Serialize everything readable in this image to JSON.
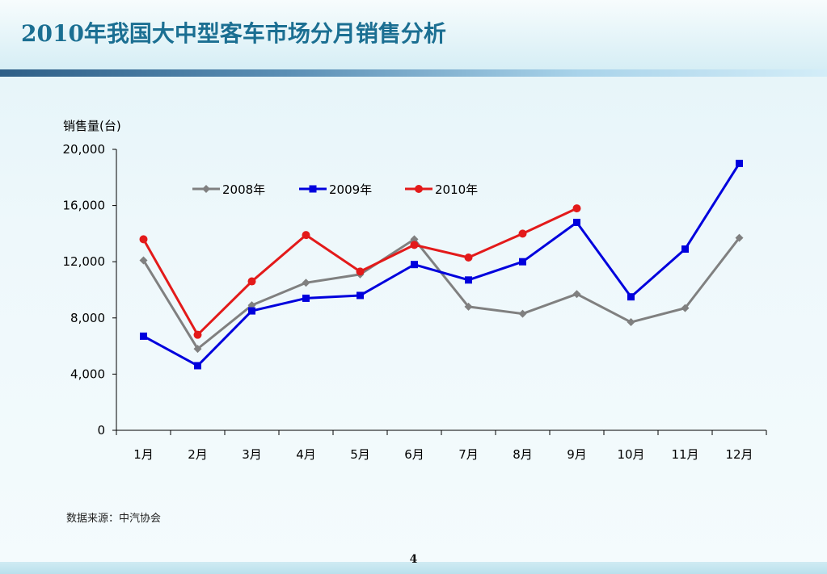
{
  "slide": {
    "title": "2010年我国大中型客车市场分月销售分析",
    "source": "数据来源：中汽协会",
    "page_number": "4"
  },
  "chart_data": {
    "type": "line",
    "ylabel": "销售量(台)",
    "xlabel": "",
    "ylim": [
      0,
      20000
    ],
    "yticks": [
      0,
      4000,
      8000,
      12000,
      16000,
      20000
    ],
    "ytick_labels": [
      "0",
      "4,000",
      "8,000",
      "12,000",
      "16,000",
      "20,000"
    ],
    "categories": [
      "1月",
      "2月",
      "3月",
      "4月",
      "5月",
      "6月",
      "7月",
      "8月",
      "9月",
      "10月",
      "11月",
      "12月"
    ],
    "legend_position": "top",
    "series": [
      {
        "name": "2008年",
        "color": "#808080",
        "marker": "diamond",
        "values": [
          12100,
          5800,
          8900,
          10500,
          11100,
          13600,
          8800,
          8300,
          9700,
          7700,
          8700,
          13700
        ]
      },
      {
        "name": "2009年",
        "color": "#0000dd",
        "marker": "square",
        "values": [
          6700,
          4600,
          8500,
          9400,
          9600,
          11800,
          10700,
          12000,
          14800,
          9500,
          12900,
          19000
        ]
      },
      {
        "name": "2010年",
        "color": "#e31a1a",
        "marker": "circle",
        "values": [
          13600,
          6800,
          10600,
          13900,
          11300,
          13200,
          12300,
          14000,
          15800,
          null,
          null,
          null
        ]
      }
    ]
  }
}
